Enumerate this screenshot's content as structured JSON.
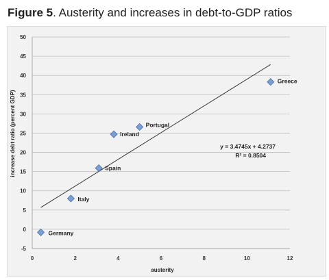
{
  "figure": {
    "number_label": "Figure 5",
    "title_rest": ". Austerity and increases in debt-to-GDP ratios"
  },
  "chart_data": {
    "type": "scatter",
    "xlabel": "austerity",
    "ylabel": "increase debt ratio (percent GDP)",
    "xlim": [
      0,
      12
    ],
    "ylim": [
      -5,
      50
    ],
    "xticks": [
      0,
      2,
      4,
      6,
      8,
      10,
      12
    ],
    "yticks": [
      -5,
      0,
      5,
      10,
      15,
      20,
      25,
      30,
      35,
      40,
      45,
      50
    ],
    "grid": "horizontal",
    "marker_color": "#7b9fd4",
    "trendline_color": "#333333",
    "points": [
      {
        "label": "Germany",
        "x": 0.4,
        "y": -0.8
      },
      {
        "label": "Italy",
        "x": 1.8,
        "y": 8.0
      },
      {
        "label": "Spain",
        "x": 3.1,
        "y": 15.9
      },
      {
        "label": "Ireland",
        "x": 3.8,
        "y": 24.7
      },
      {
        "label": "Portugal",
        "x": 5.0,
        "y": 26.6
      },
      {
        "label": "Greece",
        "x": 11.1,
        "y": 38.3
      }
    ],
    "trendline": {
      "slope": 3.4745,
      "intercept": 4.2737,
      "x_range": [
        0.4,
        11.1
      ],
      "equation_label": "y = 3.4745x + 4.2737",
      "r2_label": "R² = 0.8504"
    }
  }
}
